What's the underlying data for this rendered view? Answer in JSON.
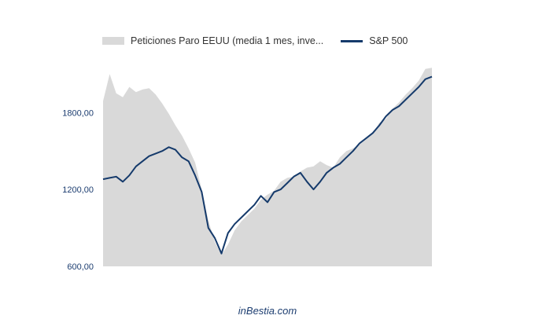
{
  "chart_data": {
    "type": "area+line",
    "title": "",
    "xlabel": "",
    "ylabel": "",
    "ylim": [
      600,
      2200
    ],
    "yticks": [
      600,
      1200,
      1800
    ],
    "ytick_labels": [
      "600,00",
      "1200,00",
      "1800,00"
    ],
    "grid": false,
    "legend_position": "top",
    "colors": {
      "area": "#d9d9d9",
      "line": "#153a6b",
      "tick_text": "#1c3d70"
    },
    "x": [
      0,
      2,
      4,
      6,
      8,
      10,
      12,
      14,
      16,
      18,
      20,
      22,
      24,
      26,
      28,
      30,
      32,
      34,
      36,
      38,
      40,
      42,
      44,
      46,
      48,
      50,
      52,
      54,
      56,
      58,
      60,
      62,
      64,
      66,
      68,
      70,
      72,
      74,
      76,
      78,
      80,
      82,
      84,
      86,
      88,
      90,
      92,
      94,
      96,
      98,
      100
    ],
    "series": [
      {
        "name": "Peticiones Paro EEUU (media 1 mes, inve...",
        "type": "area",
        "values": [
          1890,
          2100,
          1950,
          1920,
          2000,
          1960,
          1980,
          1990,
          1940,
          1870,
          1790,
          1700,
          1620,
          1520,
          1410,
          1200,
          960,
          790,
          690,
          770,
          880,
          950,
          1000,
          1050,
          1120,
          1160,
          1190,
          1260,
          1290,
          1300,
          1340,
          1370,
          1380,
          1420,
          1390,
          1370,
          1450,
          1500,
          1520,
          1550,
          1590,
          1640,
          1720,
          1750,
          1830,
          1880,
          1940,
          1990,
          2050,
          2140,
          2150
        ]
      },
      {
        "name": "S&P 500",
        "type": "line",
        "values": [
          1280,
          1290,
          1300,
          1260,
          1310,
          1380,
          1420,
          1460,
          1480,
          1500,
          1530,
          1510,
          1450,
          1420,
          1310,
          1180,
          900,
          820,
          700,
          860,
          930,
          980,
          1030,
          1080,
          1150,
          1100,
          1180,
          1200,
          1250,
          1300,
          1330,
          1260,
          1200,
          1260,
          1330,
          1370,
          1400,
          1450,
          1500,
          1560,
          1600,
          1640,
          1700,
          1770,
          1820,
          1850,
          1900,
          1950,
          2000,
          2060,
          2080
        ]
      }
    ]
  },
  "legend": {
    "item1_label": "Peticiones Paro EEUU (media 1 mes, inve...",
    "item2_label": "S&P 500"
  },
  "watermark": "inBestia.com"
}
